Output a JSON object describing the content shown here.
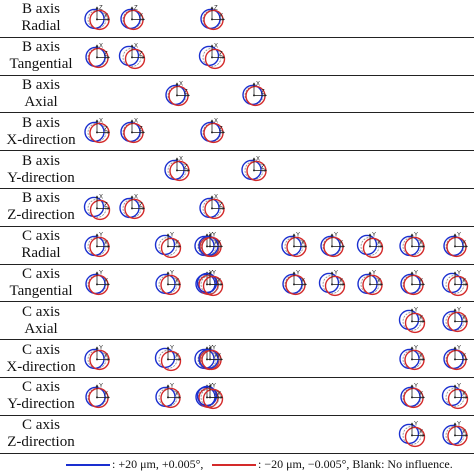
{
  "rows": [
    {
      "line1": "B axis",
      "line2": "Radial",
      "cells": [
        {
          "col": 0,
          "axes": [
            "Z",
            "X"
          ]
        },
        {
          "col": 1,
          "axes": [
            "Z",
            "X"
          ]
        },
        {
          "col": 4,
          "axes": [
            "Z",
            "X"
          ]
        }
      ]
    },
    {
      "line1": "B axis",
      "line2": "Tangential",
      "cells": [
        {
          "col": 0,
          "axes": [
            "X",
            "Z"
          ]
        },
        {
          "col": 1,
          "axes": [
            "X",
            "Z"
          ]
        },
        {
          "col": 4,
          "axes": [
            "X",
            "Z"
          ]
        }
      ]
    },
    {
      "line1": "B axis",
      "line2": "Axial",
      "cells": [
        {
          "col": 2,
          "axes": [
            "X",
            "Z"
          ]
        },
        {
          "col": 5,
          "axes": [
            "X",
            "Z"
          ]
        }
      ]
    },
    {
      "line1": "B axis",
      "line2": "X-direction",
      "cells": [
        {
          "col": 0,
          "axes": [
            "X",
            "Z"
          ]
        },
        {
          "col": 1,
          "axes": [
            "X",
            "Z"
          ]
        },
        {
          "col": 4,
          "axes": [
            "X",
            "Z"
          ]
        }
      ]
    },
    {
      "line1": "B axis",
      "line2": "Y-direction",
      "cells": [
        {
          "col": 2,
          "axes": [
            "X",
            "Z"
          ]
        },
        {
          "col": 5,
          "axes": [
            "X",
            "Z"
          ]
        }
      ]
    },
    {
      "line1": "B axis",
      "line2": "Z-direction",
      "cells": [
        {
          "col": 0,
          "axes": [
            "X",
            "Z"
          ]
        },
        {
          "col": 1,
          "axes": [
            "X",
            "Z"
          ]
        },
        {
          "col": 4,
          "axes": [
            "X",
            "Z"
          ]
        }
      ]
    },
    {
      "line1": "C axis",
      "line2": "Radial",
      "cells": [
        {
          "col": 0,
          "axes": [
            "Y",
            "X"
          ]
        },
        {
          "col": 2,
          "axes": [
            "Y",
            "X"
          ]
        },
        {
          "col": 3,
          "axes": [
            "Y",
            "X"
          ]
        },
        {
          "col": 4,
          "axes": [
            "Y",
            "X"
          ]
        },
        {
          "col": 6,
          "axes": [
            "Y",
            "X"
          ]
        },
        {
          "col": 7,
          "axes": [
            "Y",
            "X"
          ]
        },
        {
          "col": 8,
          "axes": [
            "Y",
            "X"
          ]
        },
        {
          "col": 9,
          "axes": [
            "Y",
            "X"
          ]
        },
        {
          "col": 10,
          "axes": [
            "Y",
            "X"
          ]
        }
      ]
    },
    {
      "line1": "C axis",
      "line2": "Tangential",
      "cells": [
        {
          "col": 0,
          "axes": [
            "Y",
            "X"
          ]
        },
        {
          "col": 2,
          "axes": [
            "Y",
            "X"
          ]
        },
        {
          "col": 3,
          "axes": [
            "Y",
            "X"
          ]
        },
        {
          "col": 4,
          "axes": [
            "Y",
            "X"
          ]
        },
        {
          "col": 6,
          "axes": [
            "Y",
            "X"
          ]
        },
        {
          "col": 7,
          "axes": [
            "Y",
            "X"
          ]
        },
        {
          "col": 8,
          "axes": [
            "Y",
            "X"
          ]
        },
        {
          "col": 9,
          "axes": [
            "Y",
            "X"
          ]
        },
        {
          "col": 10,
          "axes": [
            "Y",
            "X"
          ]
        }
      ]
    },
    {
      "line1": "C axis",
      "line2": "Axial",
      "cells": [
        {
          "col": 9,
          "axes": [
            "Y",
            "X"
          ]
        },
        {
          "col": 10,
          "axes": [
            "Y",
            "X"
          ]
        }
      ]
    },
    {
      "line1": "C axis",
      "line2": "X-direction",
      "cells": [
        {
          "col": 0,
          "axes": [
            "Y",
            "X"
          ]
        },
        {
          "col": 2,
          "axes": [
            "Y",
            "X"
          ]
        },
        {
          "col": 3,
          "axes": [
            "Y",
            "X"
          ]
        },
        {
          "col": 4,
          "axes": [
            "Y",
            "X"
          ]
        },
        {
          "col": 9,
          "axes": [
            "Y",
            "X"
          ]
        },
        {
          "col": 10,
          "axes": [
            "Y",
            "X"
          ]
        }
      ]
    },
    {
      "line1": "C axis",
      "line2": "Y-direction",
      "cells": [
        {
          "col": 0,
          "axes": [
            "Y",
            "X"
          ]
        },
        {
          "col": 2,
          "axes": [
            "Y",
            "X"
          ]
        },
        {
          "col": 3,
          "axes": [
            "Y",
            "X"
          ]
        },
        {
          "col": 4,
          "axes": [
            "Y",
            "X"
          ]
        },
        {
          "col": 9,
          "axes": [
            "Y",
            "X"
          ]
        },
        {
          "col": 10,
          "axes": [
            "Y",
            "X"
          ]
        }
      ]
    },
    {
      "line1": "C axis",
      "line2": "Z-direction",
      "cells": [
        {
          "col": 9,
          "axes": [
            "Y",
            "X"
          ]
        },
        {
          "col": 10,
          "axes": [
            "Y",
            "X"
          ]
        }
      ]
    }
  ],
  "legend": {
    "positive_text": ": +20 μm, +0.005°,",
    "negative_text": ": −20 μm, −0.005°, Blank: No influence.",
    "positive_color": "#1a2fd0",
    "negative_color": "#d42a2a"
  },
  "colors": {
    "reference": "#888888",
    "axis": "#222222"
  }
}
